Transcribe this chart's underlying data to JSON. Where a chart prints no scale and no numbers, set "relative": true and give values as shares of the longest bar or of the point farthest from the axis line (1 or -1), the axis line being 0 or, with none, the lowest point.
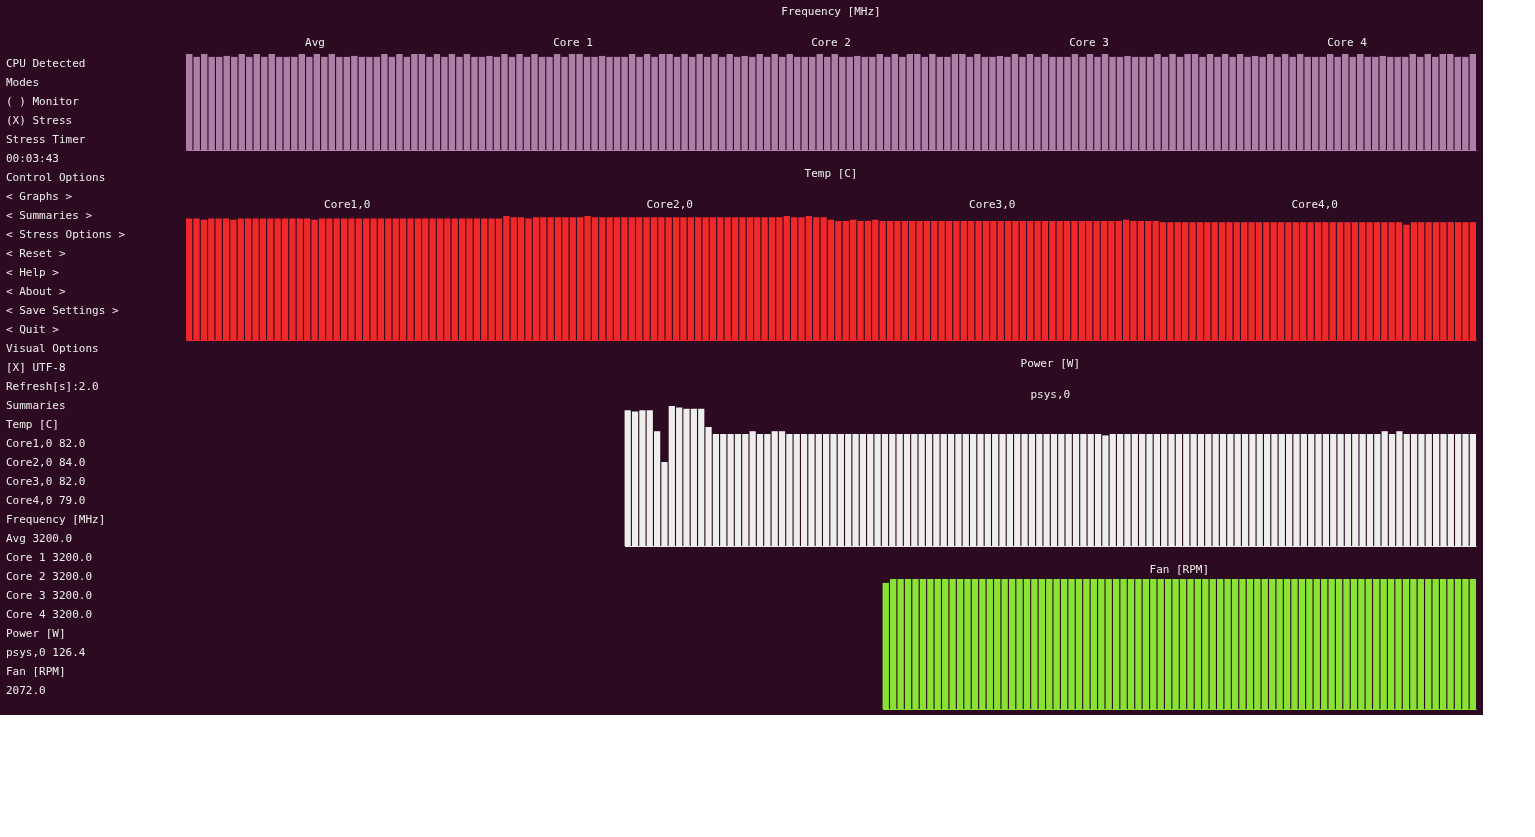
{
  "chart_data": [
    {
      "type": "other",
      "annotations": [
        "CPU Detected",
        "Modes",
        "( ) Monitor",
        "(X) Stress",
        "Stress Timer",
        "00:03:43",
        "Control Options",
        "< Graphs >",
        "< Summaries >",
        "< Stress Options >",
        "< Reset >",
        "< Help >",
        "< About >",
        "< Save Settings >",
        "< Quit >",
        "Visual Options",
        "[X] UTF-8",
        "Refresh[s]:2.0",
        "Summaries",
        "Temp [C]",
        "Core1,0 82.0",
        "Core2,0 84.0",
        "Core3,0 82.0",
        "Core4,0 79.0",
        "Frequency [MHz]",
        "Avg 3200.0",
        "Core 1 3200.0",
        "Core 2 3200.0",
        "Core 3 3200.0",
        "Core 4 3200.0",
        "Power [W]",
        "psys,0 126.4",
        "Fan [RPM]",
        "2072.0"
      ]
    },
    {
      "type": "bar",
      "title": "Frequency [MHz]",
      "relative": true,
      "annotations": [
        "Avg",
        "Core 1",
        "Core 2",
        "Core 3",
        "Core 4"
      ],
      "categories": [
        null,
        null,
        null,
        null,
        null,
        null,
        null,
        null,
        null,
        null,
        null,
        null,
        null,
        null,
        null,
        null,
        null,
        null,
        null,
        null,
        null,
        null,
        null,
        null,
        null,
        null,
        null,
        null,
        null,
        null,
        null,
        null,
        null,
        null,
        null,
        null,
        null,
        null,
        null,
        null,
        null,
        null,
        null,
        null,
        null,
        null,
        null,
        null,
        null,
        null,
        null,
        null,
        null,
        null,
        null,
        null,
        null,
        null,
        null,
        null,
        null,
        null,
        null,
        null,
        null,
        null,
        null,
        null,
        null,
        null,
        null,
        null,
        null,
        null,
        null,
        null,
        null,
        null,
        null,
        null,
        null,
        null,
        null,
        null,
        null,
        null,
        null,
        null,
        null,
        null,
        null,
        null,
        null,
        null,
        null,
        null,
        null,
        null,
        null,
        null,
        null,
        null,
        null,
        null,
        null,
        null,
        null,
        null,
        null,
        null,
        null,
        null,
        null,
        null,
        null,
        null,
        null,
        null,
        null,
        null,
        null,
        null,
        null,
        null,
        null,
        null,
        null,
        null,
        null,
        null,
        null,
        null,
        null,
        null,
        null,
        null,
        null,
        null,
        null,
        null,
        null,
        null,
        null,
        null,
        null,
        null,
        null,
        null,
        null,
        null,
        null,
        null,
        null,
        null,
        null,
        null,
        null,
        null,
        null,
        null,
        null,
        null,
        null,
        null,
        null,
        null,
        null,
        null,
        null,
        null,
        null,
        null
      ],
      "series": [
        {
          "color": "#ad7fa8",
          "values": [
            1,
            0.97,
            1,
            0.97,
            0.97,
            0.98,
            0.97,
            1,
            0.97,
            1,
            0.97,
            1,
            0.97,
            0.97,
            0.97,
            1,
            0.97,
            1,
            0.97,
            1,
            0.97,
            0.97,
            0.98,
            0.97,
            0.97,
            0.97,
            1,
            0.97,
            1,
            0.97,
            1,
            1,
            0.97,
            1,
            0.97,
            1,
            0.97,
            1,
            0.97,
            0.97,
            0.98,
            0.97,
            1,
            0.97,
            1,
            0.97,
            1,
            0.97,
            0.97,
            1,
            0.97,
            1,
            1,
            0.97,
            0.97,
            0.98,
            0.97,
            0.97,
            0.97,
            1,
            0.97,
            1,
            0.97,
            1,
            1,
            0.97,
            1,
            0.97,
            1,
            0.97,
            1,
            0.97,
            1,
            0.97,
            0.98,
            0.97,
            1,
            0.97,
            1,
            0.97,
            1,
            0.97,
            0.97,
            0.97,
            1,
            0.97,
            1,
            0.97,
            0.97,
            0.98,
            0.97,
            0.97,
            1,
            0.97,
            1,
            0.97,
            1,
            1,
            0.97,
            1,
            0.97,
            0.97,
            1,
            1,
            0.97,
            1,
            0.97,
            0.97,
            0.98,
            0.97,
            1,
            0.97,
            1,
            0.97,
            1,
            0.97,
            0.97,
            0.97,
            1,
            0.97,
            1,
            0.97,
            1,
            0.97,
            0.97,
            0.98,
            0.97,
            0.97,
            0.97,
            1,
            0.97,
            1,
            0.97,
            1,
            1,
            0.97,
            1,
            0.97,
            1,
            0.97,
            1,
            0.97,
            0.98,
            0.97,
            1,
            0.97,
            1,
            0.97,
            1,
            0.97,
            0.97,
            0.97,
            1,
            0.97,
            1,
            0.97,
            1,
            0.97,
            0.97,
            0.98,
            0.97,
            0.97,
            0.97,
            1,
            0.97,
            1,
            0.97,
            1,
            1,
            0.97,
            0.97,
            1
          ]
        }
      ]
    },
    {
      "type": "bar",
      "title": "Temp [C]",
      "relative": true,
      "annotations": [
        "Core1,0",
        "Core2,0",
        "Core3,0",
        "Core4,0"
      ],
      "categories": [
        null,
        null,
        null,
        null,
        null,
        null,
        null,
        null,
        null,
        null,
        null,
        null,
        null,
        null,
        null,
        null,
        null,
        null,
        null,
        null,
        null,
        null,
        null,
        null,
        null,
        null,
        null,
        null,
        null,
        null,
        null,
        null,
        null,
        null,
        null,
        null,
        null,
        null,
        null,
        null,
        null,
        null,
        null,
        null,
        null,
        null,
        null,
        null,
        null,
        null,
        null,
        null,
        null,
        null,
        null,
        null,
        null,
        null,
        null,
        null,
        null,
        null,
        null,
        null,
        null,
        null,
        null,
        null,
        null,
        null,
        null,
        null,
        null,
        null,
        null,
        null,
        null,
        null,
        null,
        null,
        null,
        null,
        null,
        null,
        null,
        null,
        null,
        null,
        null,
        null,
        null,
        null,
        null,
        null,
        null,
        null,
        null,
        null,
        null,
        null,
        null,
        null,
        null,
        null,
        null,
        null,
        null,
        null,
        null,
        null,
        null,
        null,
        null,
        null,
        null,
        null,
        null,
        null,
        null,
        null,
        null,
        null,
        null,
        null,
        null,
        null,
        null,
        null,
        null,
        null,
        null,
        null,
        null,
        null,
        null,
        null,
        null,
        null,
        null,
        null,
        null,
        null,
        null,
        null,
        null,
        null,
        null,
        null,
        null,
        null,
        null,
        null,
        null,
        null,
        null,
        null,
        null,
        null,
        null,
        null,
        null,
        null,
        null,
        null,
        null,
        null,
        null,
        null,
        null,
        null,
        null,
        null,
        null,
        null,
        null
      ],
      "series": [
        {
          "color": "#ef2929",
          "values": [
            0.98,
            0.98,
            0.97,
            0.98,
            0.98,
            0.98,
            0.97,
            0.98,
            0.98,
            0.98,
            0.98,
            0.98,
            0.98,
            0.98,
            0.98,
            0.98,
            0.98,
            0.97,
            0.98,
            0.98,
            0.98,
            0.98,
            0.98,
            0.98,
            0.98,
            0.98,
            0.98,
            0.98,
            0.98,
            0.98,
            0.98,
            0.98,
            0.98,
            0.98,
            0.98,
            0.98,
            0.98,
            0.98,
            0.98,
            0.98,
            0.98,
            0.98,
            0.98,
            1,
            0.99,
            0.99,
            0.98,
            0.99,
            0.99,
            0.99,
            0.99,
            0.99,
            0.99,
            0.99,
            1,
            0.99,
            0.99,
            0.99,
            0.99,
            0.99,
            0.99,
            0.99,
            0.99,
            0.99,
            0.99,
            0.99,
            0.99,
            0.99,
            0.99,
            0.99,
            0.99,
            0.99,
            0.99,
            0.99,
            0.99,
            0.99,
            0.99,
            0.99,
            0.99,
            0.99,
            0.99,
            1,
            0.99,
            0.99,
            1,
            0.99,
            0.99,
            0.97,
            0.96,
            0.96,
            0.97,
            0.96,
            0.96,
            0.97,
            0.96,
            0.96,
            0.96,
            0.96,
            0.96,
            0.96,
            0.96,
            0.96,
            0.96,
            0.96,
            0.96,
            0.96,
            0.96,
            0.96,
            0.96,
            0.96,
            0.96,
            0.96,
            0.96,
            0.96,
            0.96,
            0.96,
            0.96,
            0.96,
            0.96,
            0.96,
            0.96,
            0.96,
            0.96,
            0.96,
            0.96,
            0.96,
            0.96,
            0.97,
            0.96,
            0.96,
            0.96,
            0.96,
            0.95,
            0.95,
            0.95,
            0.95,
            0.95,
            0.95,
            0.95,
            0.95,
            0.95,
            0.95,
            0.95,
            0.95,
            0.95,
            0.95,
            0.95,
            0.95,
            0.95,
            0.95,
            0.95,
            0.95,
            0.95,
            0.95,
            0.95,
            0.95,
            0.95,
            0.95,
            0.95,
            0.95,
            0.95,
            0.95,
            0.95,
            0.95,
            0.95,
            0.93,
            0.95,
            0.95,
            0.95,
            0.95,
            0.95,
            0.95,
            0.95,
            0.95,
            0.95
          ]
        }
      ]
    },
    {
      "type": "bar",
      "title": "Power [W]",
      "relative": true,
      "categories": [
        null,
        null,
        null,
        null,
        null,
        null,
        null,
        null,
        null,
        null,
        null,
        null,
        null,
        null,
        null,
        null,
        null,
        null,
        null,
        null,
        null,
        null,
        null,
        null,
        null,
        null,
        null,
        null,
        null,
        null,
        null,
        null,
        null,
        null,
        null,
        null,
        null,
        null,
        null,
        null,
        null,
        null,
        null,
        null,
        null,
        null,
        null,
        null,
        null,
        null,
        null,
        null,
        null,
        null,
        null,
        null,
        null,
        null,
        null,
        null,
        null,
        null,
        null,
        null,
        null,
        null,
        null,
        null,
        null,
        null,
        null,
        null,
        null,
        null,
        null,
        null,
        null,
        null,
        null,
        null,
        null,
        null,
        null,
        null,
        null,
        null,
        null,
        null,
        null,
        null,
        null,
        null,
        null,
        null,
        null,
        null,
        null,
        null,
        null,
        null,
        null,
        null,
        null,
        null,
        null,
        null,
        null,
        null,
        null,
        null,
        null,
        null,
        null,
        null,
        null,
        null
      ],
      "series": [
        {
          "name": "psys,0",
          "color": "#eeeeec",
          "values": [
            0.97,
            0.96,
            0.97,
            0.97,
            0.82,
            0.6,
            1,
            0.99,
            0.98,
            0.98,
            0.98,
            0.85,
            0.8,
            0.8,
            0.8,
            0.8,
            0.8,
            0.82,
            0.8,
            0.8,
            0.82,
            0.82,
            0.8,
            0.8,
            0.8,
            0.8,
            0.8,
            0.8,
            0.8,
            0.8,
            0.8,
            0.8,
            0.8,
            0.8,
            0.8,
            0.8,
            0.8,
            0.8,
            0.8,
            0.8,
            0.8,
            0.8,
            0.8,
            0.8,
            0.8,
            0.8,
            0.8,
            0.8,
            0.8,
            0.8,
            0.8,
            0.8,
            0.8,
            0.8,
            0.8,
            0.8,
            0.8,
            0.8,
            0.8,
            0.8,
            0.8,
            0.8,
            0.8,
            0.8,
            0.8,
            0.79,
            0.8,
            0.8,
            0.8,
            0.8,
            0.8,
            0.8,
            0.8,
            0.8,
            0.8,
            0.8,
            0.8,
            0.8,
            0.8,
            0.8,
            0.8,
            0.8,
            0.8,
            0.8,
            0.8,
            0.8,
            0.8,
            0.8,
            0.8,
            0.8,
            0.8,
            0.8,
            0.8,
            0.8,
            0.8,
            0.8,
            0.8,
            0.8,
            0.8,
            0.8,
            0.8,
            0.8,
            0.8,
            0.82,
            0.8,
            0.82,
            0.8,
            0.8,
            0.8,
            0.8,
            0.8,
            0.8,
            0.8,
            0.8,
            0.8,
            0.8
          ]
        }
      ]
    },
    {
      "type": "bar",
      "title": "Fan [RPM]",
      "relative": true,
      "categories": [
        null,
        null,
        null,
        null,
        null,
        null,
        null,
        null,
        null,
        null,
        null,
        null,
        null,
        null,
        null,
        null,
        null,
        null,
        null,
        null,
        null,
        null,
        null,
        null,
        null,
        null,
        null,
        null,
        null,
        null,
        null,
        null,
        null,
        null,
        null,
        null,
        null,
        null,
        null,
        null,
        null,
        null,
        null,
        null,
        null,
        null,
        null,
        null,
        null,
        null,
        null,
        null,
        null,
        null,
        null,
        null,
        null,
        null,
        null,
        null,
        null,
        null,
        null,
        null,
        null,
        null,
        null,
        null,
        null,
        null,
        null,
        null,
        null,
        null,
        null,
        null,
        null,
        null,
        null,
        null
      ],
      "series": [
        {
          "color": "#8ae234",
          "values": [
            0.97,
            1,
            1,
            1,
            1,
            1,
            1,
            1,
            1,
            1,
            1,
            1,
            1,
            1,
            1,
            1,
            1,
            1,
            1,
            1,
            1,
            1,
            1,
            1,
            1,
            1,
            1,
            1,
            1,
            1,
            1,
            1,
            1,
            1,
            1,
            1,
            1,
            1,
            1,
            1,
            1,
            1,
            1,
            1,
            1,
            1,
            1,
            1,
            1,
            1,
            1,
            1,
            1,
            1,
            1,
            1,
            1,
            1,
            1,
            1,
            1,
            1,
            1,
            1,
            1,
            1,
            1,
            1,
            1,
            1,
            1,
            1,
            1,
            1,
            1,
            1,
            1,
            1,
            1,
            1
          ]
        }
      ]
    }
  ]
}
